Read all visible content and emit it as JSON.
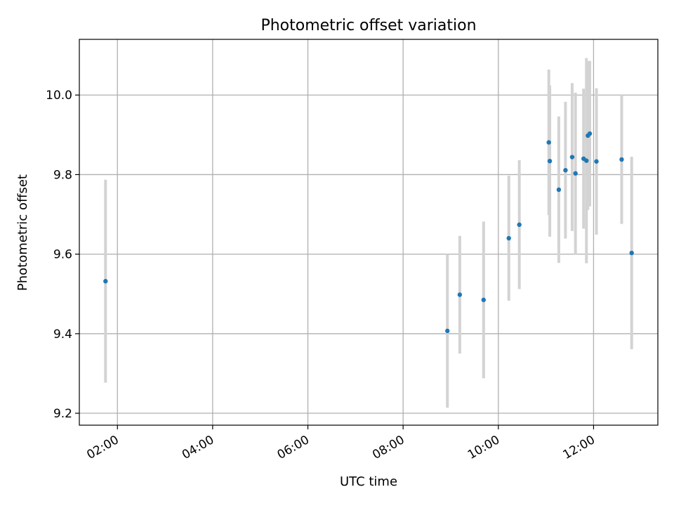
{
  "chart_data": {
    "type": "scatter",
    "title": "Photometric offset variation",
    "xlabel": "UTC time",
    "ylabel": "Photometric offset",
    "x_unit": "hours (UTC)",
    "xlim": [
      1.2,
      13.35
    ],
    "ylim": [
      9.17,
      10.14
    ],
    "x_ticks": [
      {
        "value": 2,
        "label": "02:00"
      },
      {
        "value": 4,
        "label": "04:00"
      },
      {
        "value": 6,
        "label": "06:00"
      },
      {
        "value": 8,
        "label": "08:00"
      },
      {
        "value": 10,
        "label": "10:00"
      },
      {
        "value": 12,
        "label": "12:00"
      }
    ],
    "y_ticks": [
      {
        "value": 9.2,
        "label": "9.2"
      },
      {
        "value": 9.4,
        "label": "9.4"
      },
      {
        "value": 9.6,
        "label": "9.6"
      },
      {
        "value": 9.8,
        "label": "9.8"
      },
      {
        "value": 10.0,
        "label": "10.0"
      }
    ],
    "grid": true,
    "colors": {
      "point": "#1f77b4",
      "errorbar": "#d3d3d3",
      "grid": "#b0b0b0",
      "axes": "#000000"
    },
    "points": [
      {
        "x": 1.75,
        "y": 9.532,
        "yerr": 0.255
      },
      {
        "x": 8.93,
        "y": 9.407,
        "yerr": 0.193
      },
      {
        "x": 9.19,
        "y": 9.498,
        "yerr": 0.148
      },
      {
        "x": 9.69,
        "y": 9.485,
        "yerr": 0.197
      },
      {
        "x": 10.22,
        "y": 9.64,
        "yerr": 0.157
      },
      {
        "x": 10.44,
        "y": 9.674,
        "yerr": 0.162
      },
      {
        "x": 11.06,
        "y": 9.881,
        "yerr": 0.183
      },
      {
        "x": 11.08,
        "y": 9.834,
        "yerr": 0.19
      },
      {
        "x": 11.27,
        "y": 9.762,
        "yerr": 0.184
      },
      {
        "x": 11.41,
        "y": 9.811,
        "yerr": 0.172
      },
      {
        "x": 11.55,
        "y": 9.844,
        "yerr": 0.186
      },
      {
        "x": 11.62,
        "y": 9.803,
        "yerr": 0.203
      },
      {
        "x": 11.79,
        "y": 9.84,
        "yerr": 0.176
      },
      {
        "x": 11.85,
        "y": 9.835,
        "yerr": 0.258
      },
      {
        "x": 11.88,
        "y": 9.898,
        "yerr": 0.187
      },
      {
        "x": 11.92,
        "y": 9.903,
        "yerr": 0.183
      },
      {
        "x": 12.06,
        "y": 9.833,
        "yerr": 0.184
      },
      {
        "x": 12.59,
        "y": 9.838,
        "yerr": 0.162
      },
      {
        "x": 12.8,
        "y": 9.603,
        "yerr": 0.242
      }
    ]
  }
}
